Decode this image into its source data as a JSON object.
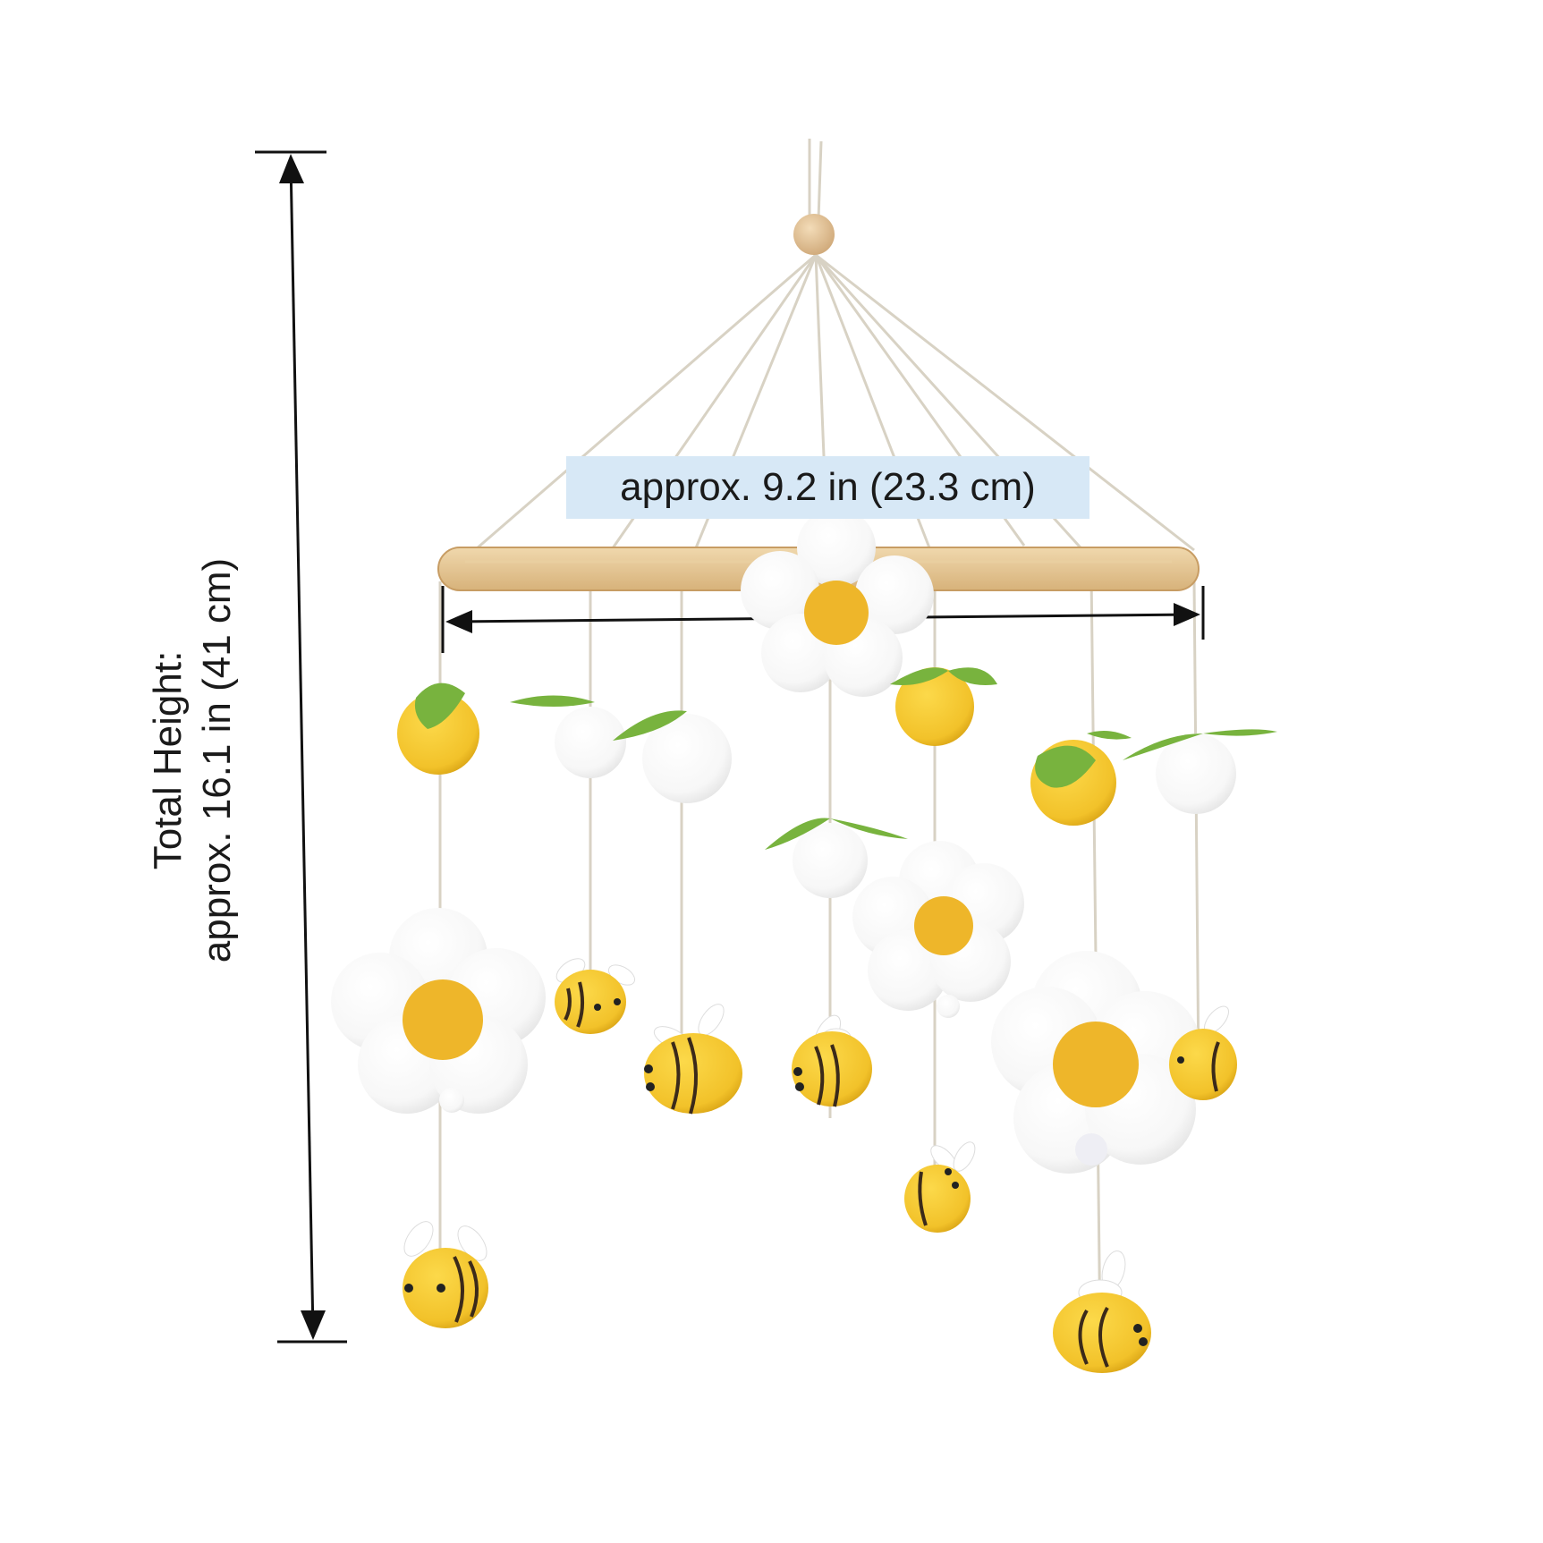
{
  "dimensions": {
    "width_label": "approx. 9.2 in (23.3 cm)",
    "height_label_line1": "Total Height:",
    "height_label_line2": "approx. 16.1 in (41 cm)"
  },
  "colors": {
    "hoop_wood": "#e6c99a",
    "string": "#d8d2c4",
    "felt_white": "#fbfbfb",
    "felt_yellow": "#f2c22a",
    "flower_center": "#eeb62a",
    "leaf_green": "#78b33e",
    "bee_stripe": "#3b2a1a",
    "label_highlight": "#d7e8f6"
  }
}
